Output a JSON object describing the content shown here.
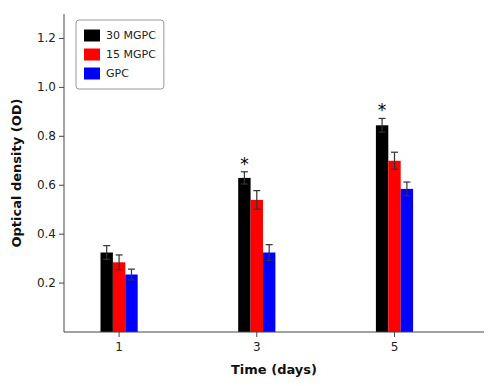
{
  "chart_data": {
    "type": "bar",
    "xlabel": "Time (days)",
    "ylabel": "Optical density (OD)",
    "x": [
      1,
      3,
      5
    ],
    "xlim": [
      0.2,
      6.3
    ],
    "xticks": [
      1,
      3,
      5
    ],
    "ylim": [
      0.0,
      1.3
    ],
    "yticks": [
      0.2,
      0.4,
      0.6,
      0.8,
      {
        "value": 1.0,
        "label": "1.0"
      },
      1.2
    ],
    "series": [
      {
        "name": "30 MGPC",
        "color": "#000000",
        "values": [
          0.325,
          0.63,
          0.845
        ],
        "errors": [
          0.028,
          0.025,
          0.028
        ]
      },
      {
        "name": "15 MGPC",
        "color": "#ff0000",
        "values": [
          0.285,
          0.54,
          0.7
        ],
        "errors": [
          0.03,
          0.038,
          0.035
        ]
      },
      {
        "name": "GPC",
        "color": "#0000ff",
        "values": [
          0.235,
          0.325,
          0.585
        ],
        "errors": [
          0.022,
          0.032,
          0.028
        ]
      }
    ],
    "annotations": [
      {
        "text": "*",
        "x": 3,
        "series": "30 MGPC"
      },
      {
        "text": "*",
        "x": 5,
        "series": "30 MGPC"
      }
    ],
    "legend": "upper-left",
    "grid": false
  }
}
